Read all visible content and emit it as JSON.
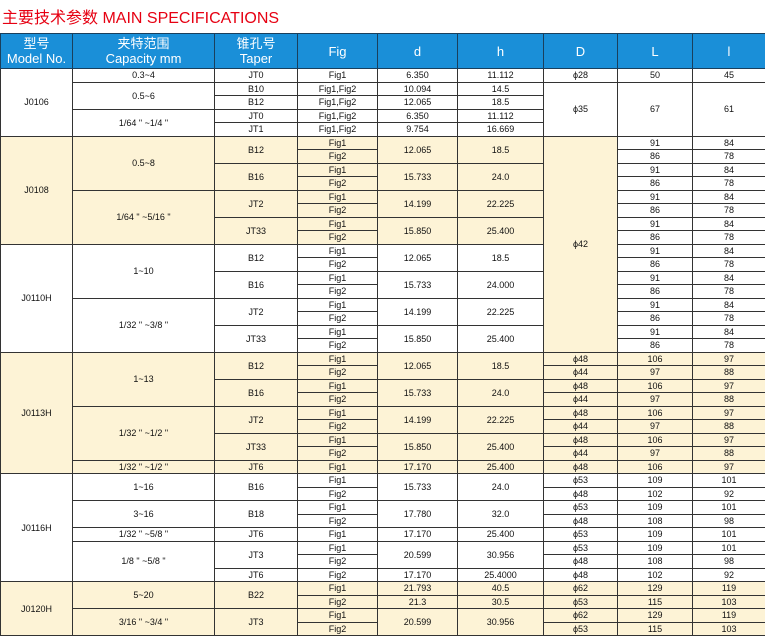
{
  "title": "主要技术参数  MAIN SPECIFICATIONS",
  "colors": {
    "title": "#e60012",
    "header": "#1a8fd8",
    "highlight": "#fdf3d6"
  },
  "headers": [
    {
      "key": "model",
      "cn": "型号",
      "en": "Model No."
    },
    {
      "key": "capacity",
      "cn": "夹特范围",
      "en": "Capacity mm"
    },
    {
      "key": "taper",
      "cn": "锥孔号",
      "en": "Taper"
    },
    {
      "key": "fig",
      "cn": "",
      "en": "Fig"
    },
    {
      "key": "d",
      "cn": "",
      "en": "d"
    },
    {
      "key": "h",
      "cn": "",
      "en": "h"
    },
    {
      "key": "D",
      "cn": "",
      "en": "D"
    },
    {
      "key": "L",
      "cn": "",
      "en": "L"
    },
    {
      "key": "l",
      "cn": "",
      "en": "l"
    }
  ],
  "rows": [
    {
      "hl": false,
      "c": [
        [
          "model",
          "J0106",
          5
        ],
        [
          "capacity",
          "0.3~4",
          1
        ],
        [
          "taper",
          "JT0",
          1
        ],
        [
          "fig",
          "Fig1",
          1
        ],
        [
          "d",
          "6.350",
          1
        ],
        [
          "h",
          "11.112",
          1
        ],
        [
          "D",
          "ϕ28",
          1
        ],
        [
          "L",
          "50",
          1
        ],
        [
          "l",
          "45",
          1
        ]
      ]
    },
    {
      "hl": false,
      "c": [
        [
          "capacity",
          "0.5~6",
          2
        ],
        [
          "taper",
          "B10",
          1
        ],
        [
          "fig",
          "Fig1,Fig2",
          1
        ],
        [
          "d",
          "10.094",
          1
        ],
        [
          "h",
          "14.5",
          1
        ],
        [
          "D",
          "ϕ35",
          4
        ],
        [
          "L",
          "67",
          4
        ],
        [
          "l",
          "61",
          4
        ]
      ]
    },
    {
      "hl": false,
      "c": [
        [
          "taper",
          "B12",
          1
        ],
        [
          "fig",
          "Fig1,Fig2",
          1
        ],
        [
          "d",
          "12.065",
          1
        ],
        [
          "h",
          "18.5",
          1
        ]
      ]
    },
    {
      "hl": false,
      "c": [
        [
          "capacity",
          "1/64 \" ~1/4 \"",
          2
        ],
        [
          "taper",
          "JT0",
          1
        ],
        [
          "fig",
          "Fig1,Fig2",
          1
        ],
        [
          "d",
          "6.350",
          1
        ],
        [
          "h",
          "11.112",
          1
        ]
      ]
    },
    {
      "hl": false,
      "c": [
        [
          "taper",
          "JT1",
          1
        ],
        [
          "fig",
          "Fig1,Fig2",
          1
        ],
        [
          "d",
          "9.754",
          1
        ],
        [
          "h",
          "16.669",
          1
        ]
      ]
    },
    {
      "hl": true,
      "c": [
        [
          "model",
          "J0108",
          8
        ],
        [
          "capacity",
          "0.5~8",
          4
        ],
        [
          "taper",
          "B12",
          2
        ],
        [
          "fig",
          "Fig1",
          1
        ],
        [
          "d",
          "12.065",
          2
        ],
        [
          "h",
          "18.5",
          2
        ],
        [
          "D",
          "ϕ42",
          16
        ],
        [
          "L",
          "91",
          1,
          false
        ],
        [
          "l",
          "84",
          1,
          false
        ]
      ]
    },
    {
      "hl": true,
      "c": [
        [
          "fig",
          "Fig2",
          1
        ],
        [
          "L",
          "86",
          1,
          false
        ],
        [
          "l",
          "78",
          1,
          false
        ]
      ]
    },
    {
      "hl": true,
      "c": [
        [
          "taper",
          "B16",
          2
        ],
        [
          "fig",
          "Fig1",
          1
        ],
        [
          "d",
          "15.733",
          2
        ],
        [
          "h",
          "24.0",
          2
        ],
        [
          "L",
          "91",
          1,
          false
        ],
        [
          "l",
          "84",
          1,
          false
        ]
      ]
    },
    {
      "hl": true,
      "c": [
        [
          "fig",
          "Fig2",
          1
        ],
        [
          "L",
          "86",
          1,
          false
        ],
        [
          "l",
          "78",
          1,
          false
        ]
      ]
    },
    {
      "hl": true,
      "c": [
        [
          "capacity",
          "1/64 \" ~5/16 \"",
          4
        ],
        [
          "taper",
          "JT2",
          2
        ],
        [
          "fig",
          "Fig1",
          1
        ],
        [
          "d",
          "14.199",
          2
        ],
        [
          "h",
          "22.225",
          2
        ],
        [
          "L",
          "91",
          1,
          false
        ],
        [
          "l",
          "84",
          1,
          false
        ]
      ]
    },
    {
      "hl": true,
      "c": [
        [
          "fig",
          "Fig2",
          1
        ],
        [
          "L",
          "86",
          1,
          false
        ],
        [
          "l",
          "78",
          1,
          false
        ]
      ]
    },
    {
      "hl": true,
      "c": [
        [
          "taper",
          "JT33",
          2
        ],
        [
          "fig",
          "Fig1",
          1
        ],
        [
          "d",
          "15.850",
          2
        ],
        [
          "h",
          "25.400",
          2
        ],
        [
          "L",
          "91",
          1,
          false
        ],
        [
          "l",
          "84",
          1,
          false
        ]
      ]
    },
    {
      "hl": true,
      "c": [
        [
          "fig",
          "Fig2",
          1
        ],
        [
          "L",
          "86",
          1,
          false
        ],
        [
          "l",
          "78",
          1,
          false
        ]
      ]
    },
    {
      "hl": false,
      "c": [
        [
          "model",
          "J0110H",
          8
        ],
        [
          "capacity",
          "1~10",
          4
        ],
        [
          "taper",
          "B12",
          2
        ],
        [
          "fig",
          "Fig1",
          1
        ],
        [
          "d",
          "12.065",
          2
        ],
        [
          "h",
          "18.5",
          2
        ],
        [
          "L",
          "91",
          1
        ],
        [
          "l",
          "84",
          1
        ]
      ]
    },
    {
      "hl": false,
      "c": [
        [
          "fig",
          "Fig2",
          1
        ],
        [
          "L",
          "86",
          1
        ],
        [
          "l",
          "78",
          1
        ]
      ]
    },
    {
      "hl": false,
      "c": [
        [
          "taper",
          "B16",
          2
        ],
        [
          "fig",
          "Fig1",
          1
        ],
        [
          "d",
          "15.733",
          2
        ],
        [
          "h",
          "24.000",
          2
        ],
        [
          "L",
          "91",
          1
        ],
        [
          "l",
          "84",
          1
        ]
      ]
    },
    {
      "hl": false,
      "c": [
        [
          "fig",
          "Fig2",
          1
        ],
        [
          "L",
          "86",
          1
        ],
        [
          "l",
          "78",
          1
        ]
      ]
    },
    {
      "hl": false,
      "c": [
        [
          "capacity",
          "1/32 \" ~3/8 \"",
          4
        ],
        [
          "taper",
          "JT2",
          2
        ],
        [
          "fig",
          "Fig1",
          1
        ],
        [
          "d",
          "14.199",
          2
        ],
        [
          "h",
          "22.225",
          2
        ],
        [
          "L",
          "91",
          1
        ],
        [
          "l",
          "84",
          1
        ]
      ]
    },
    {
      "hl": false,
      "c": [
        [
          "fig",
          "Fig2",
          1
        ],
        [
          "L",
          "86",
          1
        ],
        [
          "l",
          "78",
          1
        ]
      ]
    },
    {
      "hl": false,
      "c": [
        [
          "taper",
          "JT33",
          2
        ],
        [
          "fig",
          "Fig1",
          1
        ],
        [
          "d",
          "15.850",
          2
        ],
        [
          "h",
          "25.400",
          2
        ],
        [
          "L",
          "91",
          1
        ],
        [
          "l",
          "84",
          1
        ]
      ]
    },
    {
      "hl": false,
      "c": [
        [
          "fig",
          "Fig2",
          1
        ],
        [
          "L",
          "86",
          1
        ],
        [
          "l",
          "78",
          1
        ]
      ]
    },
    {
      "hl": true,
      "c": [
        [
          "model",
          "J0113H",
          9
        ],
        [
          "capacity",
          "1~13",
          4
        ],
        [
          "taper",
          "B12",
          2
        ],
        [
          "fig",
          "Fig1",
          1
        ],
        [
          "d",
          "12.065",
          2
        ],
        [
          "h",
          "18.5",
          2
        ],
        [
          "D",
          "ϕ48",
          1
        ],
        [
          "L",
          "106",
          1
        ],
        [
          "l",
          "97",
          1
        ]
      ]
    },
    {
      "hl": true,
      "c": [
        [
          "fig",
          "Fig2",
          1
        ],
        [
          "D",
          "ϕ44",
          1
        ],
        [
          "L",
          "97",
          1
        ],
        [
          "l",
          "88",
          1
        ]
      ]
    },
    {
      "hl": true,
      "c": [
        [
          "taper",
          "B16",
          2
        ],
        [
          "fig",
          "Fig1",
          1
        ],
        [
          "d",
          "15.733",
          2
        ],
        [
          "h",
          "24.0",
          2
        ],
        [
          "D",
          "ϕ48",
          1
        ],
        [
          "L",
          "106",
          1
        ],
        [
          "l",
          "97",
          1
        ]
      ]
    },
    {
      "hl": true,
      "c": [
        [
          "fig",
          "Fig2",
          1
        ],
        [
          "D",
          "ϕ44",
          1
        ],
        [
          "L",
          "97",
          1
        ],
        [
          "l",
          "88",
          1
        ]
      ]
    },
    {
      "hl": true,
      "c": [
        [
          "capacity",
          "1/32 \" ~1/2 \"",
          4
        ],
        [
          "taper",
          "JT2",
          2
        ],
        [
          "fig",
          "Fig1",
          1
        ],
        [
          "d",
          "14.199",
          2
        ],
        [
          "h",
          "22.225",
          2
        ],
        [
          "D",
          "ϕ48",
          1
        ],
        [
          "L",
          "106",
          1
        ],
        [
          "l",
          "97",
          1
        ]
      ]
    },
    {
      "hl": true,
      "c": [
        [
          "fig",
          "Fig2",
          1
        ],
        [
          "D",
          "ϕ44",
          1
        ],
        [
          "L",
          "97",
          1
        ],
        [
          "l",
          "88",
          1
        ]
      ]
    },
    {
      "hl": true,
      "c": [
        [
          "taper",
          "JT33",
          2
        ],
        [
          "fig",
          "Fig1",
          1
        ],
        [
          "d",
          "15.850",
          2
        ],
        [
          "h",
          "25.400",
          2
        ],
        [
          "D",
          "ϕ48",
          1
        ],
        [
          "L",
          "106",
          1
        ],
        [
          "l",
          "97",
          1
        ]
      ]
    },
    {
      "hl": true,
      "c": [
        [
          "fig",
          "Fig2",
          1
        ],
        [
          "D",
          "ϕ44",
          1
        ],
        [
          "L",
          "97",
          1
        ],
        [
          "l",
          "88",
          1
        ]
      ]
    },
    {
      "hl": true,
      "c": [
        [
          "capacity",
          "1/32 \" ~1/2 \"",
          1
        ],
        [
          "taper",
          "JT6",
          1
        ],
        [
          "fig",
          "Fig1",
          1
        ],
        [
          "d",
          "17.170",
          1
        ],
        [
          "h",
          "25.400",
          1
        ],
        [
          "D",
          "ϕ48",
          1
        ],
        [
          "L",
          "106",
          1
        ],
        [
          "l",
          "97",
          1
        ]
      ]
    },
    {
      "hl": false,
      "c": [
        [
          "model",
          "J0116H",
          8
        ],
        [
          "capacity",
          "1~16",
          2
        ],
        [
          "taper",
          "B16",
          2
        ],
        [
          "fig",
          "Fig1",
          1
        ],
        [
          "d",
          "15.733",
          2
        ],
        [
          "h",
          "24.0",
          2
        ],
        [
          "D",
          "ϕ53",
          1
        ],
        [
          "L",
          "109",
          1
        ],
        [
          "l",
          "101",
          1
        ]
      ]
    },
    {
      "hl": false,
      "c": [
        [
          "fig",
          "Fig2",
          1
        ],
        [
          "D",
          "ϕ48",
          1
        ],
        [
          "L",
          "102",
          1
        ],
        [
          "l",
          "92",
          1
        ]
      ]
    },
    {
      "hl": false,
      "c": [
        [
          "capacity",
          "3~16",
          2
        ],
        [
          "taper",
          "B18",
          2
        ],
        [
          "fig",
          "Fig1",
          1
        ],
        [
          "d",
          "17.780",
          2
        ],
        [
          "h",
          "32.0",
          2
        ],
        [
          "D",
          "ϕ53",
          1
        ],
        [
          "L",
          "109",
          1
        ],
        [
          "l",
          "101",
          1
        ]
      ]
    },
    {
      "hl": false,
      "c": [
        [
          "fig",
          "Fig2",
          1
        ],
        [
          "D",
          "ϕ48",
          1
        ],
        [
          "L",
          "108",
          1
        ],
        [
          "l",
          "98",
          1
        ]
      ]
    },
    {
      "hl": false,
      "c": [
        [
          "capacity",
          "1/32 \" ~5/8 \"",
          1
        ],
        [
          "taper",
          "JT6",
          1
        ],
        [
          "fig",
          "Fig1",
          1
        ],
        [
          "d",
          "17.170",
          1
        ],
        [
          "h",
          "25.400",
          1
        ],
        [
          "D",
          "ϕ53",
          1
        ],
        [
          "L",
          "109",
          1
        ],
        [
          "l",
          "101",
          1
        ]
      ]
    },
    {
      "hl": false,
      "c": [
        [
          "capacity",
          "1/8 \" ~5/8 \"",
          3
        ],
        [
          "taper",
          "JT3",
          2
        ],
        [
          "fig",
          "Fig1",
          1
        ],
        [
          "d",
          "20.599",
          2
        ],
        [
          "h",
          "30.956",
          2
        ],
        [
          "D",
          "ϕ53",
          1
        ],
        [
          "L",
          "109",
          1
        ],
        [
          "l",
          "101",
          1
        ]
      ]
    },
    {
      "hl": false,
      "c": [
        [
          "fig",
          "Fig2",
          1
        ],
        [
          "D",
          "ϕ48",
          1
        ],
        [
          "L",
          "108",
          1
        ],
        [
          "l",
          "98",
          1
        ]
      ]
    },
    {
      "hl": false,
      "c": [
        [
          "taper",
          "JT6",
          1
        ],
        [
          "fig",
          "Fig2",
          1
        ],
        [
          "d",
          "17.170",
          1
        ],
        [
          "h",
          "25.4000",
          1
        ],
        [
          "D",
          "ϕ48",
          1
        ],
        [
          "L",
          "102",
          1
        ],
        [
          "l",
          "92",
          1
        ]
      ]
    },
    {
      "hl": true,
      "c": [
        [
          "model",
          "J0120H",
          4
        ],
        [
          "capacity",
          "5~20",
          2
        ],
        [
          "taper",
          "B22",
          2
        ],
        [
          "fig",
          "Fig1",
          1
        ],
        [
          "d",
          "21.793",
          1
        ],
        [
          "h",
          "40.5",
          1
        ],
        [
          "D",
          "ϕ62",
          1
        ],
        [
          "L",
          "129",
          1
        ],
        [
          "l",
          "119",
          1
        ]
      ]
    },
    {
      "hl": true,
      "c": [
        [
          "fig",
          "Fig2",
          1
        ],
        [
          "d",
          "21.3",
          1
        ],
        [
          "h",
          "30.5",
          1
        ],
        [
          "D",
          "ϕ53",
          1
        ],
        [
          "L",
          "115",
          1
        ],
        [
          "l",
          "103",
          1
        ]
      ]
    },
    {
      "hl": true,
      "c": [
        [
          "capacity",
          "3/16 \" ~3/4 \"",
          2
        ],
        [
          "taper",
          "JT3",
          2
        ],
        [
          "fig",
          "Fig1",
          1
        ],
        [
          "d",
          "20.599",
          2
        ],
        [
          "h",
          "30.956",
          2
        ],
        [
          "D",
          "ϕ62",
          1
        ],
        [
          "L",
          "129",
          1
        ],
        [
          "l",
          "119",
          1
        ]
      ]
    },
    {
      "hl": true,
      "c": [
        [
          "fig",
          "Fig2",
          1
        ],
        [
          "D",
          "ϕ53",
          1
        ],
        [
          "L",
          "115",
          1
        ],
        [
          "l",
          "103",
          1
        ]
      ]
    }
  ]
}
